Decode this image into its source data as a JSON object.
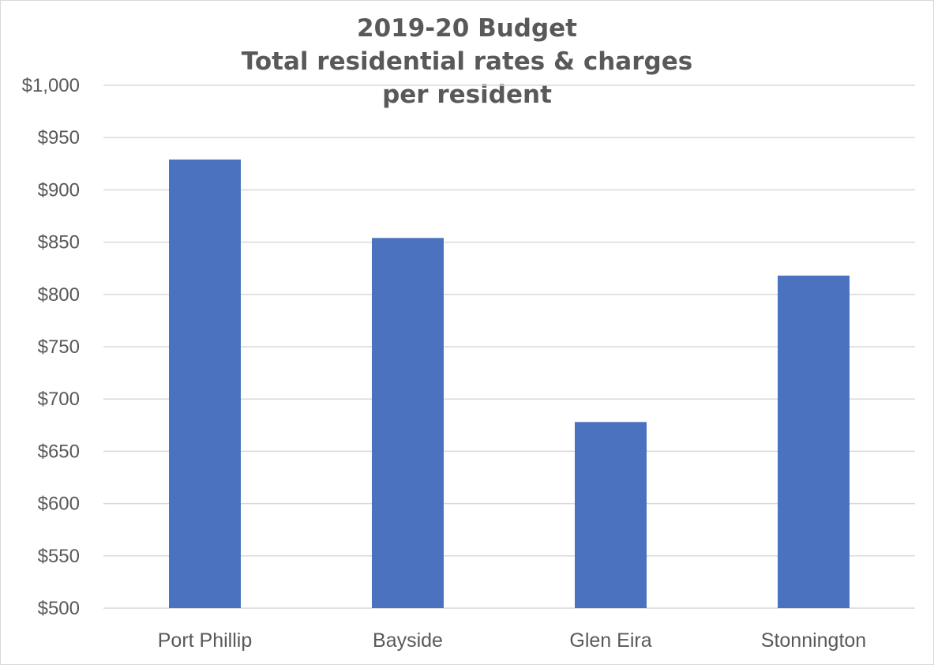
{
  "chart_data": {
    "type": "bar",
    "title_lines": [
      "2019-20 Budget",
      "Total residential rates & charges",
      "per resident"
    ],
    "categories": [
      "Port Phillip",
      "Bayside",
      "Glen Eira",
      "Stonnington"
    ],
    "values": [
      929,
      854,
      678,
      818
    ],
    "ylim": [
      500,
      1000
    ],
    "yticks": [
      500,
      550,
      600,
      650,
      700,
      750,
      800,
      850,
      900,
      950,
      1000
    ],
    "ytick_labels": [
      "$500",
      "$550",
      "$600",
      "$650",
      "$700",
      "$750",
      "$800",
      "$850",
      "$900",
      "$950",
      "$1,000"
    ],
    "xlabel": "",
    "ylabel": "",
    "grid": true,
    "bar_color": "#4a72bf"
  }
}
